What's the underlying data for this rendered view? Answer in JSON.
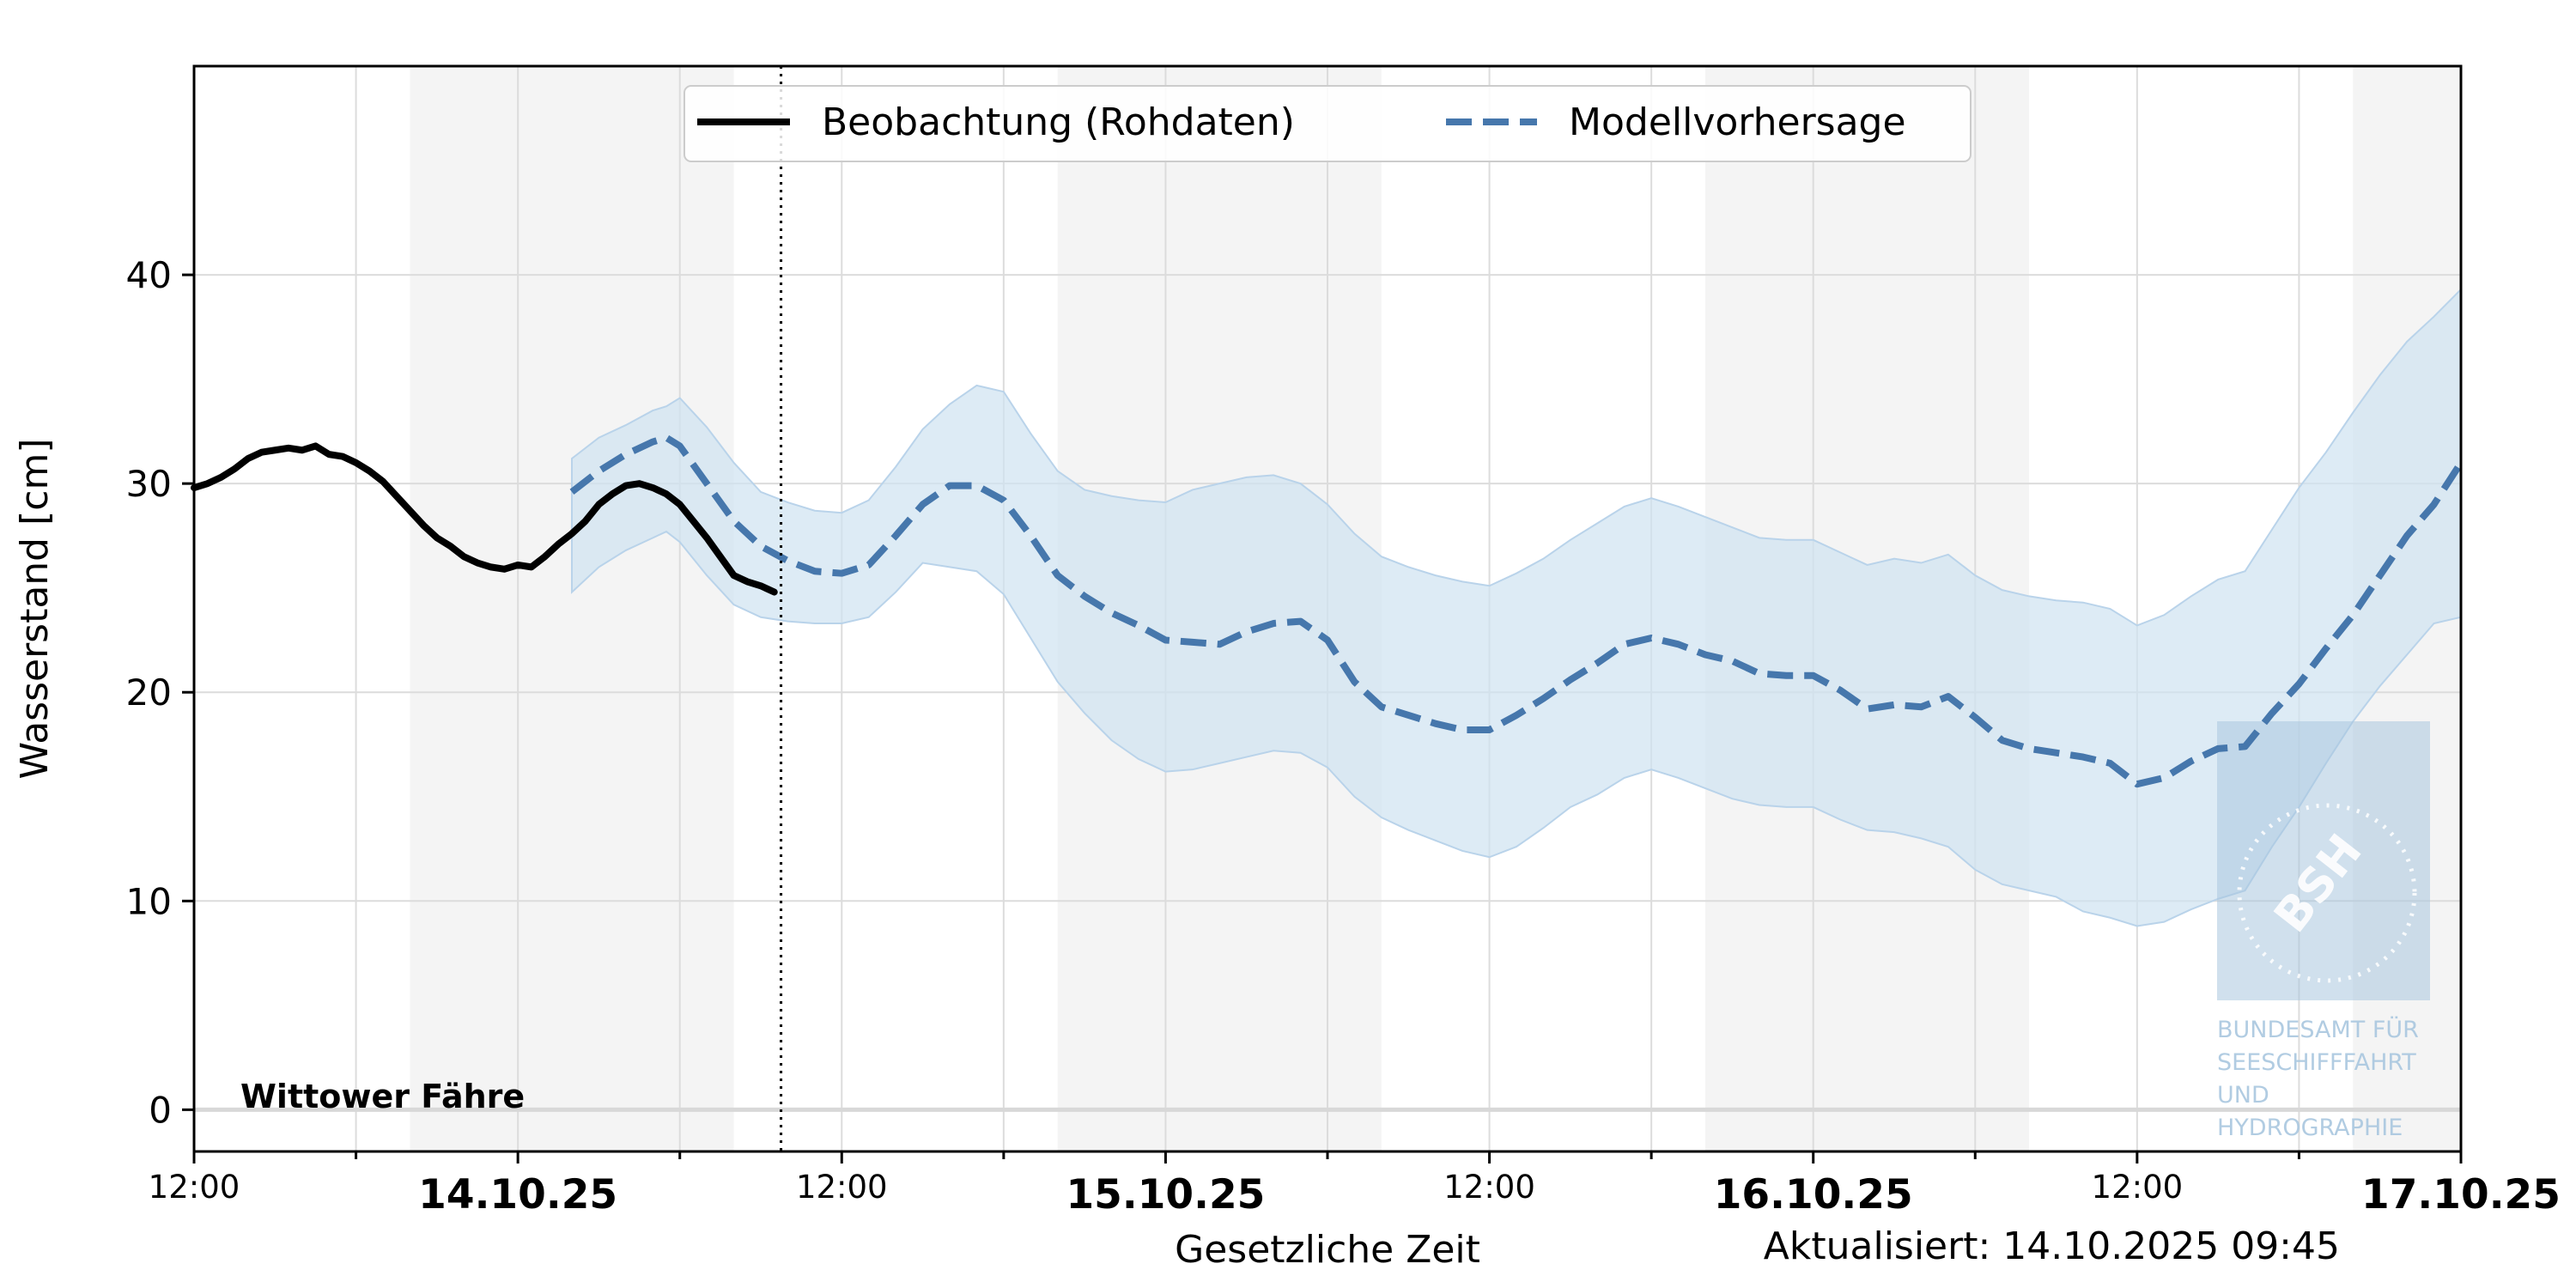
{
  "chart_data": {
    "type": "line",
    "ylabel": "Wasserstand [cm]",
    "xlabel": "Gesetzliche Zeit",
    "updated": "Aktualisiert: 14.10.2025 09:45",
    "station": "Wittower Fähre",
    "ylim": [
      -2,
      50
    ],
    "yticks": [
      0,
      10,
      20,
      30,
      40
    ],
    "x_unit": "hours since 13.10.2025 12:00",
    "xlim": [
      0,
      84
    ],
    "now_marker": 21.75,
    "night_bands": [
      [
        8,
        20
      ],
      [
        32,
        44
      ],
      [
        56,
        68
      ],
      [
        80,
        84
      ]
    ],
    "xticks": [
      {
        "x": 0,
        "label": "12:00",
        "bold": false
      },
      {
        "x": 12,
        "label": "14.10.25",
        "bold": true
      },
      {
        "x": 24,
        "label": "12:00",
        "bold": false
      },
      {
        "x": 36,
        "label": "15.10.25",
        "bold": true
      },
      {
        "x": 48,
        "label": "12:00",
        "bold": false
      },
      {
        "x": 60,
        "label": "16.10.25",
        "bold": true
      },
      {
        "x": 72,
        "label": "12:00",
        "bold": false
      },
      {
        "x": 84,
        "label": "17.10.25",
        "bold": true
      }
    ],
    "grid": true,
    "legend": {
      "placement": "top-center"
    },
    "series": [
      {
        "name": "Beobachtung (Rohdaten)",
        "style": "solid",
        "color": "#000000",
        "x": [
          0,
          0.5,
          1,
          1.5,
          2,
          2.5,
          3,
          3.5,
          4,
          4.5,
          5,
          5.5,
          6,
          6.5,
          7,
          7.5,
          8,
          8.5,
          9,
          9.5,
          10,
          10.5,
          11,
          11.5,
          12,
          12.5,
          13,
          13.5,
          14,
          14.5,
          15,
          15.5,
          16,
          16.5,
          17,
          17.5,
          18,
          18.5,
          19,
          19.5,
          20,
          20.5,
          21,
          21.5
        ],
        "y": [
          29.8,
          30.0,
          30.3,
          30.7,
          31.2,
          31.5,
          31.6,
          31.7,
          31.6,
          31.8,
          31.4,
          31.3,
          31.0,
          30.6,
          30.1,
          29.4,
          28.7,
          28.0,
          27.4,
          27.0,
          26.5,
          26.2,
          26.0,
          25.9,
          26.1,
          26.0,
          26.5,
          27.1,
          27.6,
          28.2,
          29.0,
          29.5,
          29.9,
          30.0,
          29.8,
          29.5,
          29.0,
          28.2,
          27.4,
          26.5,
          25.6,
          25.3,
          25.1,
          24.8
        ]
      },
      {
        "name": "Modellvorhersage",
        "style": "dashed",
        "color": "#4677ac",
        "x": [
          14,
          15,
          16,
          17,
          17.5,
          18,
          19,
          20,
          21,
          22,
          23,
          24,
          25,
          26,
          27,
          28,
          29,
          30,
          31,
          32,
          33,
          34,
          35,
          36,
          37,
          38,
          39,
          40,
          41,
          42,
          43,
          44,
          45,
          46,
          47,
          48,
          49,
          50,
          51,
          52,
          53,
          54,
          55,
          56,
          57,
          58,
          59,
          60,
          61,
          62,
          63,
          64,
          65,
          66,
          67,
          68,
          69,
          70,
          71,
          72,
          73,
          74,
          75,
          76,
          77,
          78,
          79,
          80,
          81,
          82,
          83,
          84
        ],
        "y": [
          29.6,
          30.6,
          31.4,
          32.0,
          32.2,
          31.8,
          30.0,
          28.2,
          27.0,
          26.3,
          25.8,
          25.7,
          26.1,
          27.5,
          29.0,
          29.9,
          29.9,
          29.2,
          27.5,
          25.6,
          24.6,
          23.8,
          23.2,
          22.5,
          22.4,
          22.3,
          22.9,
          23.3,
          23.4,
          22.5,
          20.5,
          19.3,
          18.9,
          18.5,
          18.2,
          18.2,
          18.9,
          19.7,
          20.6,
          21.4,
          22.3,
          22.6,
          22.3,
          21.8,
          21.5,
          20.9,
          20.8,
          20.8,
          20.1,
          19.2,
          19.4,
          19.3,
          19.8,
          18.8,
          17.7,
          17.3,
          17.1,
          16.9,
          16.6,
          15.6,
          15.9,
          16.7,
          17.3,
          17.4,
          19.0,
          20.4,
          22.1,
          23.7,
          25.6,
          27.5,
          29.0,
          31.0
        ],
        "band_lower": [
          24.8,
          26.0,
          26.8,
          27.4,
          27.7,
          27.2,
          25.6,
          24.2,
          23.6,
          23.4,
          23.3,
          23.3,
          23.6,
          24.8,
          26.2,
          26.0,
          25.8,
          24.7,
          22.6,
          20.5,
          19.0,
          17.7,
          16.8,
          16.2,
          16.3,
          16.6,
          16.9,
          17.2,
          17.1,
          16.4,
          15.0,
          14.0,
          13.4,
          12.9,
          12.4,
          12.1,
          12.6,
          13.5,
          14.5,
          15.1,
          15.9,
          16.3,
          15.9,
          15.4,
          14.9,
          14.6,
          14.5,
          14.5,
          13.9,
          13.4,
          13.3,
          13.0,
          12.6,
          11.5,
          10.8,
          10.5,
          10.2,
          9.5,
          9.2,
          8.8,
          9.0,
          9.6,
          10.1,
          10.5,
          12.6,
          14.5,
          16.6,
          18.6,
          20.3,
          21.8,
          23.3,
          23.6
        ],
        "band_upper": [
          31.2,
          32.2,
          32.8,
          33.5,
          33.7,
          34.1,
          32.7,
          31.0,
          29.6,
          29.1,
          28.7,
          28.6,
          29.2,
          30.8,
          32.6,
          33.8,
          34.7,
          34.4,
          32.4,
          30.6,
          29.7,
          29.4,
          29.2,
          29.1,
          29.7,
          30.0,
          30.3,
          30.4,
          30.0,
          29.0,
          27.6,
          26.5,
          26.0,
          25.6,
          25.3,
          25.1,
          25.7,
          26.4,
          27.3,
          28.1,
          28.9,
          29.3,
          28.9,
          28.4,
          27.9,
          27.4,
          27.3,
          27.3,
          26.7,
          26.1,
          26.4,
          26.2,
          26.6,
          25.6,
          24.9,
          24.6,
          24.4,
          24.3,
          24.0,
          23.2,
          23.7,
          24.6,
          25.4,
          25.8,
          27.8,
          29.8,
          31.5,
          33.4,
          35.2,
          36.8,
          38.0,
          39.3
        ]
      }
    ]
  },
  "watermark": {
    "logo_text": "BSH",
    "lines": [
      "BUNDESAMT FÜR",
      "SEESCHIFFFAHRT",
      "UND",
      "HYDROGRAPHIE"
    ]
  },
  "colors": {
    "band": "#cfe2f1",
    "night": "#f4f4f4",
    "grid": "#dcdcdc"
  }
}
